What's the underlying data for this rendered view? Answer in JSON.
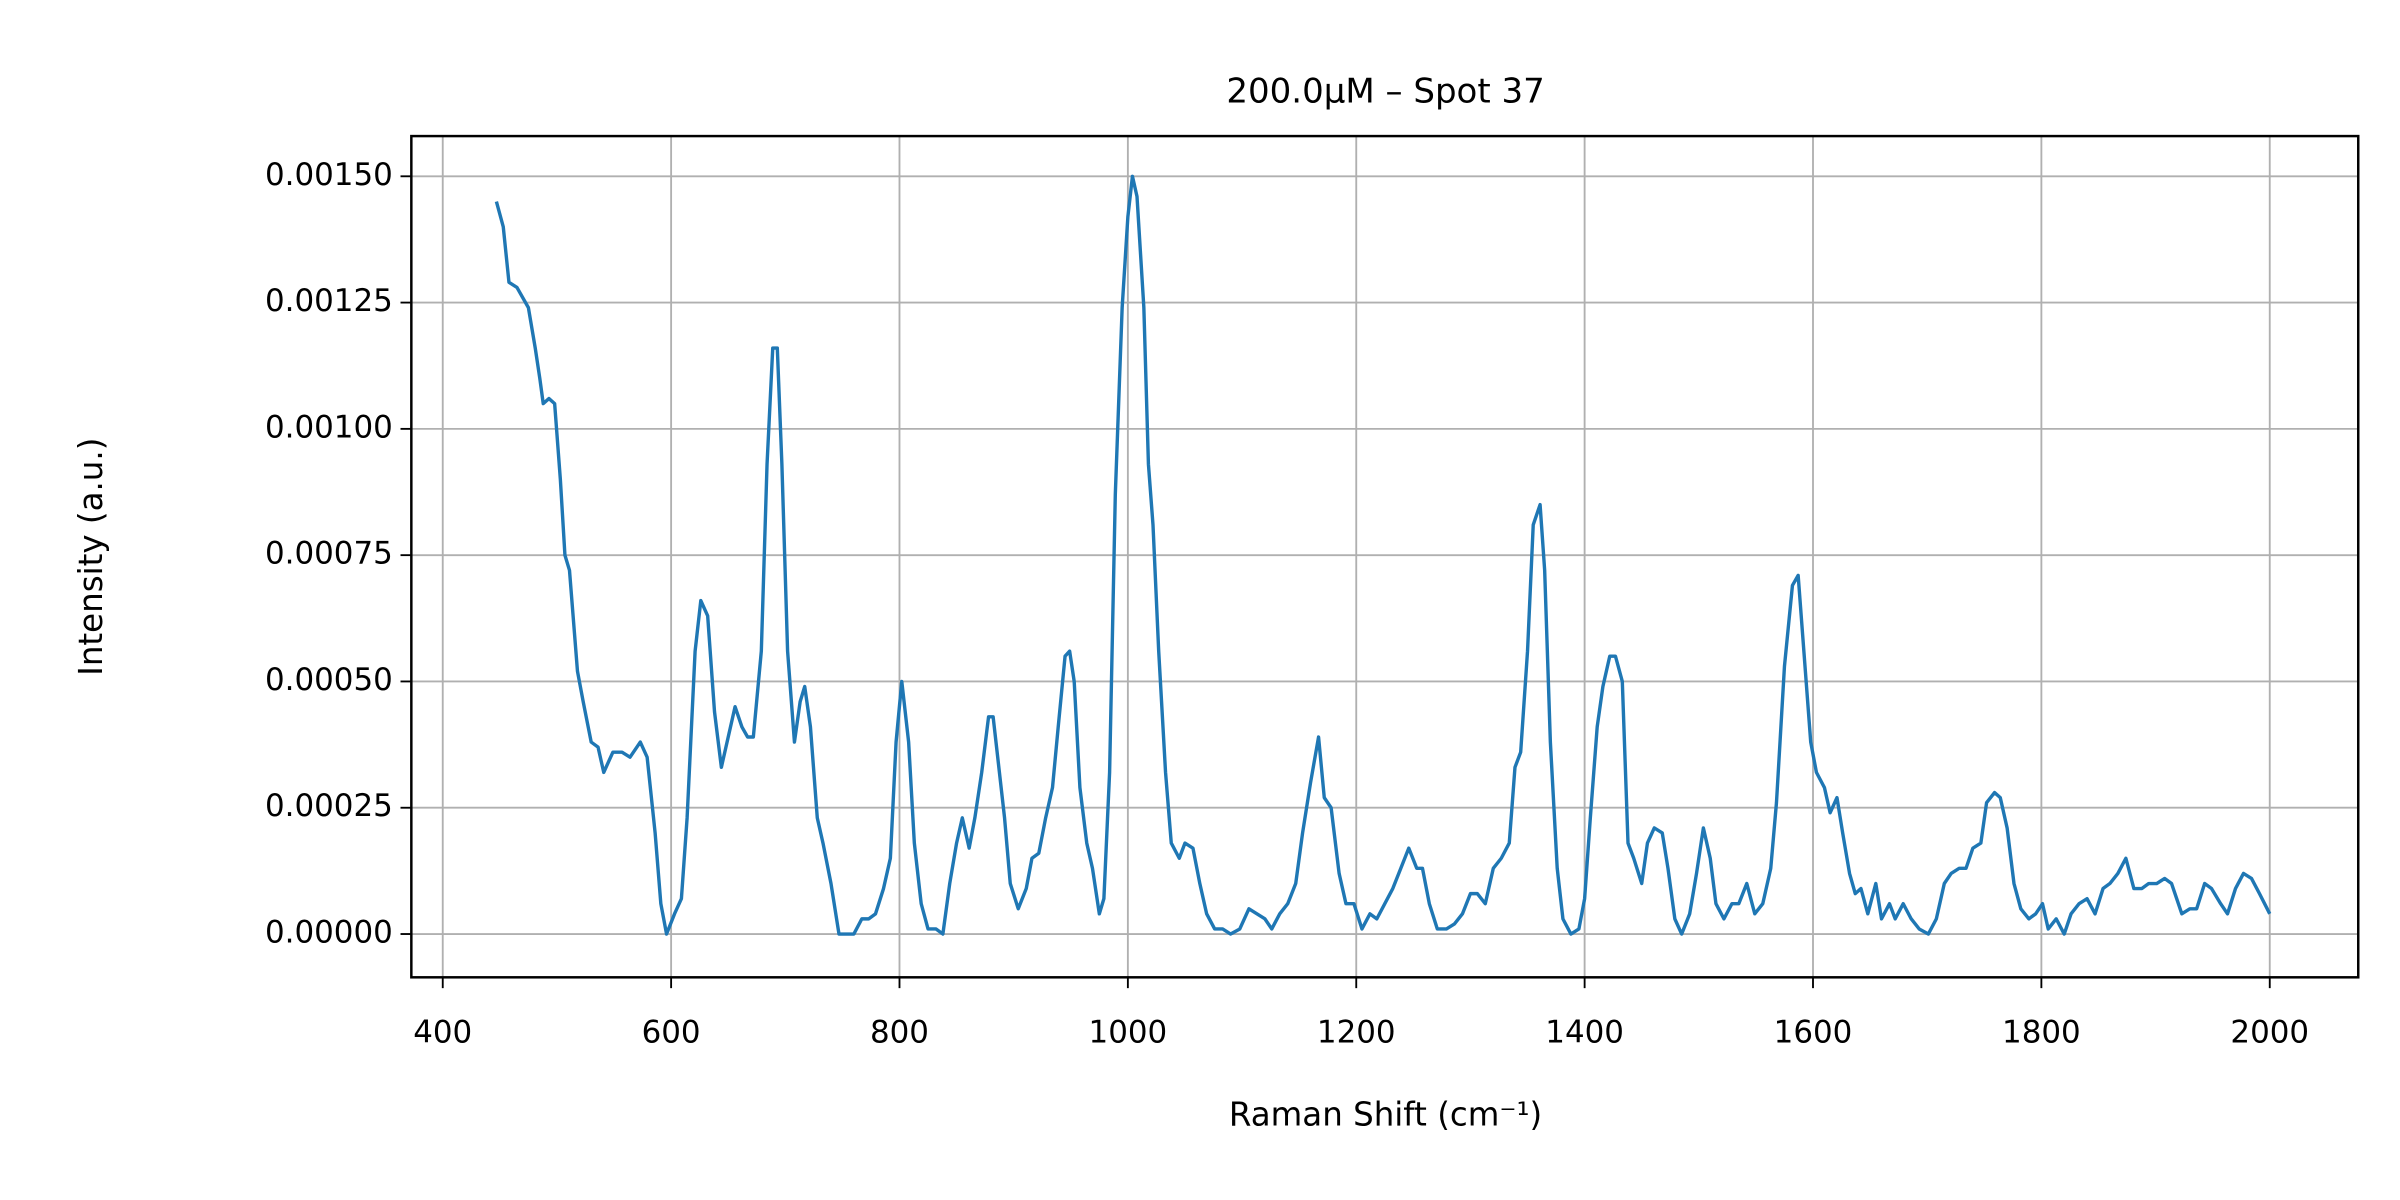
{
  "chart_data": {
    "type": "line",
    "title": "200.0μM – Spot 37",
    "x_label": "Raman Shift (cm⁻¹)",
    "y_label": "Intensity (a.u.)",
    "color": "#1f77b4",
    "grid": true,
    "xlim": [
      372.5,
      2077.5
    ],
    "xticks": [
      400,
      600,
      800,
      1000,
      1200,
      1400,
      1600,
      1800,
      2000
    ],
    "ylim": [
      -8.57e-05,
      0.0015796
    ],
    "yticks": [
      {
        "value": 0,
        "label": "0.00000"
      },
      {
        "value": 0.00025,
        "label": "0.00025"
      },
      {
        "value": 0.0005,
        "label": "0.00050"
      },
      {
        "value": 0.00075,
        "label": "0.00075"
      },
      {
        "value": 0.001,
        "label": "0.00100"
      },
      {
        "value": 0.00125,
        "label": "0.00125"
      },
      {
        "value": 0.0015,
        "label": "0.00150"
      }
    ],
    "x": [
      447,
      453,
      458,
      465,
      475,
      481,
      485,
      488,
      493,
      498,
      503,
      507,
      511,
      518,
      523,
      530,
      536,
      541,
      549,
      557,
      564,
      573,
      579,
      586,
      591,
      596,
      603,
      609,
      614,
      621,
      626,
      632,
      638,
      644,
      649,
      656,
      662,
      667,
      672,
      679,
      684,
      689,
      693,
      697,
      702,
      708,
      713,
      717,
      722,
      728,
      733,
      740,
      747,
      754,
      760,
      767,
      773,
      779,
      786,
      792,
      797,
      802,
      808,
      813,
      819,
      825,
      832,
      838,
      844,
      850,
      855,
      861,
      866,
      872,
      878,
      882,
      886,
      892,
      897,
      904,
      911,
      916,
      922,
      928,
      934,
      939,
      945,
      949,
      953,
      958,
      964,
      969,
      975,
      979,
      984,
      989,
      995,
      1000,
      1004,
      1008,
      1014,
      1018,
      1022,
      1027,
      1033,
      1038,
      1045,
      1050,
      1057,
      1063,
      1069,
      1076,
      1083,
      1090,
      1098,
      1106,
      1113,
      1120,
      1126,
      1133,
      1140,
      1147,
      1153,
      1160,
      1167,
      1172,
      1178,
      1185,
      1191,
      1198,
      1205,
      1212,
      1218,
      1225,
      1232,
      1239,
      1246,
      1253,
      1258,
      1264,
      1271,
      1279,
      1286,
      1293,
      1300,
      1306,
      1313,
      1320,
      1327,
      1334,
      1339,
      1344,
      1350,
      1355,
      1361,
      1365,
      1370,
      1376,
      1381,
      1388,
      1395,
      1400,
      1405,
      1411,
      1416,
      1422,
      1427,
      1433,
      1438,
      1443,
      1450,
      1455,
      1461,
      1468,
      1473,
      1479,
      1485,
      1492,
      1498,
      1504,
      1510,
      1515,
      1522,
      1529,
      1535,
      1542,
      1549,
      1556,
      1563,
      1568,
      1575,
      1582,
      1587,
      1592,
      1598,
      1603,
      1610,
      1615,
      1621,
      1626,
      1632,
      1637,
      1642,
      1648,
      1655,
      1660,
      1667,
      1672,
      1679,
      1686,
      1693,
      1701,
      1708,
      1715,
      1721,
      1728,
      1734,
      1740,
      1747,
      1752,
      1759,
      1764,
      1770,
      1776,
      1782,
      1789,
      1795,
      1801,
      1806,
      1813,
      1820,
      1826,
      1833,
      1840,
      1847,
      1854,
      1860,
      1867,
      1874,
      1881,
      1888,
      1894,
      1901,
      1908,
      1914,
      1923,
      1930,
      1936,
      1943,
      1949,
      1957,
      1963,
      1970,
      1977,
      1984,
      1991,
      2000
    ],
    "values": [
      0.00145,
      0.0014,
      0.00129,
      0.00128,
      0.00124,
      0.00116,
      0.0011,
      0.00105,
      0.00106,
      0.00105,
      0.0009,
      0.00075,
      0.00072,
      0.00052,
      0.00046,
      0.00038,
      0.00037,
      0.00032,
      0.00036,
      0.00036,
      0.00035,
      0.00038,
      0.00035,
      0.0002,
      6e-05,
      0,
      4e-05,
      7e-05,
      0.00023,
      0.00056,
      0.00066,
      0.00063,
      0.00044,
      0.00033,
      0.00038,
      0.00045,
      0.00041,
      0.00039,
      0.00039,
      0.00056,
      0.00093,
      0.00116,
      0.00116,
      0.00093,
      0.00056,
      0.00038,
      0.00046,
      0.00049,
      0.00041,
      0.00023,
      0.00018,
      0.0001,
      0,
      0,
      0,
      3e-05,
      3e-05,
      4e-05,
      9e-05,
      0.00015,
      0.00038,
      0.0005,
      0.00038,
      0.00018,
      6e-05,
      1e-05,
      1e-05,
      0,
      0.0001,
      0.00018,
      0.00023,
      0.00017,
      0.00023,
      0.00032,
      0.00043,
      0.00043,
      0.00035,
      0.00023,
      0.0001,
      5e-05,
      9e-05,
      0.00015,
      0.00016,
      0.00023,
      0.00029,
      0.00041,
      0.00055,
      0.00056,
      0.0005,
      0.00029,
      0.00018,
      0.00013,
      4e-05,
      7e-05,
      0.00032,
      0.00087,
      0.00124,
      0.00142,
      0.0015,
      0.00146,
      0.00124,
      0.00093,
      0.00081,
      0.00056,
      0.00032,
      0.00018,
      0.00015,
      0.00018,
      0.00017,
      0.0001,
      4e-05,
      1e-05,
      1e-05,
      0,
      1e-05,
      5e-05,
      4e-05,
      3e-05,
      1e-05,
      4e-05,
      6e-05,
      0.0001,
      0.0002,
      0.0003,
      0.00039,
      0.00027,
      0.00025,
      0.00012,
      6e-05,
      6e-05,
      1e-05,
      4e-05,
      3e-05,
      6e-05,
      9e-05,
      0.00013,
      0.00017,
      0.00013,
      0.00013,
      6e-05,
      1e-05,
      1e-05,
      2e-05,
      4e-05,
      8e-05,
      8e-05,
      6e-05,
      0.00013,
      0.00015,
      0.00018,
      0.00033,
      0.00036,
      0.00056,
      0.00081,
      0.00085,
      0.00072,
      0.00038,
      0.00013,
      3e-05,
      0,
      1e-05,
      7e-05,
      0.00023,
      0.00041,
      0.00049,
      0.00055,
      0.00055,
      0.0005,
      0.00018,
      0.00015,
      0.0001,
      0.00018,
      0.00021,
      0.0002,
      0.00013,
      3e-05,
      0,
      4e-05,
      0.00012,
      0.00021,
      0.00015,
      6e-05,
      3e-05,
      6e-05,
      6e-05,
      0.0001,
      4e-05,
      6e-05,
      0.00013,
      0.00026,
      0.00053,
      0.00069,
      0.00071,
      0.00056,
      0.00038,
      0.00032,
      0.00029,
      0.00024,
      0.00027,
      0.0002,
      0.00012,
      8e-05,
      9e-05,
      4e-05,
      0.0001,
      3e-05,
      6e-05,
      3e-05,
      6e-05,
      3e-05,
      1e-05,
      0,
      3e-05,
      0.0001,
      0.00012,
      0.00013,
      0.00013,
      0.00017,
      0.00018,
      0.00026,
      0.00028,
      0.00027,
      0.00021,
      0.0001,
      5e-05,
      3e-05,
      4e-05,
      6e-05,
      1e-05,
      3e-05,
      0,
      4e-05,
      6e-05,
      7e-05,
      4e-05,
      9e-05,
      0.0001,
      0.00012,
      0.00015,
      9e-05,
      9e-05,
      0.0001,
      0.0001,
      0.00011,
      0.0001,
      4e-05,
      5e-05,
      5e-05,
      0.0001,
      9e-05,
      6e-05,
      4e-05,
      9e-05,
      0.00012,
      0.00011,
      8e-05,
      4e-05
    ]
  }
}
